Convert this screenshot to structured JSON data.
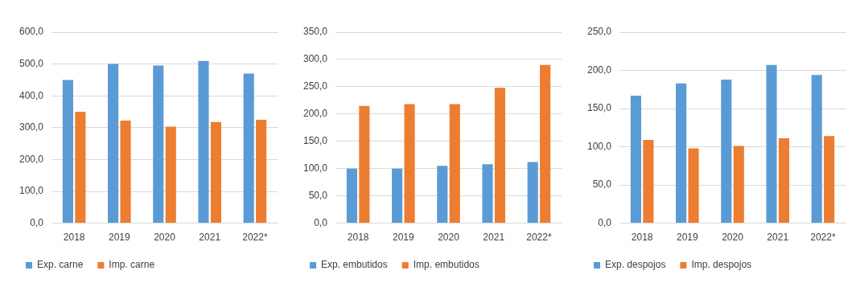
{
  "chart_data": [
    {
      "type": "bar",
      "categories": [
        "2018",
        "2019",
        "2020",
        "2021",
        "2022*"
      ],
      "series": [
        {
          "name": "Exp. carne",
          "color": "#5b9bd5",
          "values": [
            450,
            500,
            495,
            510,
            470
          ]
        },
        {
          "name": "Imp. carne",
          "color": "#ed7d31",
          "values": [
            350,
            322,
            303,
            318,
            325
          ]
        }
      ],
      "ylim": [
        0,
        600
      ],
      "yticks": [
        {
          "value": 0,
          "label": "0,0"
        },
        {
          "value": 100,
          "label": "100,0"
        },
        {
          "value": 200,
          "label": "200,0"
        },
        {
          "value": 300,
          "label": "300,0"
        },
        {
          "value": 400,
          "label": "400,0"
        },
        {
          "value": 500,
          "label": "500,0"
        },
        {
          "value": 600,
          "label": "600,0"
        }
      ],
      "grid": true,
      "legend": "bottom"
    },
    {
      "type": "bar",
      "categories": [
        "2018",
        "2019",
        "2020",
        "2021",
        "2022*"
      ],
      "series": [
        {
          "name": "Exp. embutidos",
          "color": "#5b9bd5",
          "values": [
            100,
            100,
            105,
            108,
            112
          ]
        },
        {
          "name": "Imp. embutidos",
          "color": "#ed7d31",
          "values": [
            215,
            218,
            218,
            248,
            290
          ]
        }
      ],
      "ylim": [
        0,
        350
      ],
      "yticks": [
        {
          "value": 0,
          "label": "0,0"
        },
        {
          "value": 50,
          "label": "50,0"
        },
        {
          "value": 100,
          "label": "100,0"
        },
        {
          "value": 150,
          "label": "150,0"
        },
        {
          "value": 200,
          "label": "200,0"
        },
        {
          "value": 250,
          "label": "250,0"
        },
        {
          "value": 300,
          "label": "300,0"
        },
        {
          "value": 350,
          "label": "350,0"
        }
      ],
      "grid": true,
      "legend": "bottom"
    },
    {
      "type": "bar",
      "categories": [
        "2018",
        "2019",
        "2020",
        "2021",
        "2022*"
      ],
      "series": [
        {
          "name": "Exp. despojos",
          "color": "#5b9bd5",
          "values": [
            167,
            183,
            188,
            207,
            194
          ]
        },
        {
          "name": "Imp. despojos",
          "color": "#ed7d31",
          "values": [
            109,
            98,
            101,
            111,
            114
          ]
        }
      ],
      "ylim": [
        0,
        250
      ],
      "yticks": [
        {
          "value": 0,
          "label": "0,0"
        },
        {
          "value": 50,
          "label": "50,0"
        },
        {
          "value": 100,
          "label": "100,0"
        },
        {
          "value": 150,
          "label": "150,0"
        },
        {
          "value": 200,
          "label": "200,0"
        },
        {
          "value": 250,
          "label": "250,0"
        }
      ],
      "grid": true,
      "legend": "bottom"
    }
  ]
}
